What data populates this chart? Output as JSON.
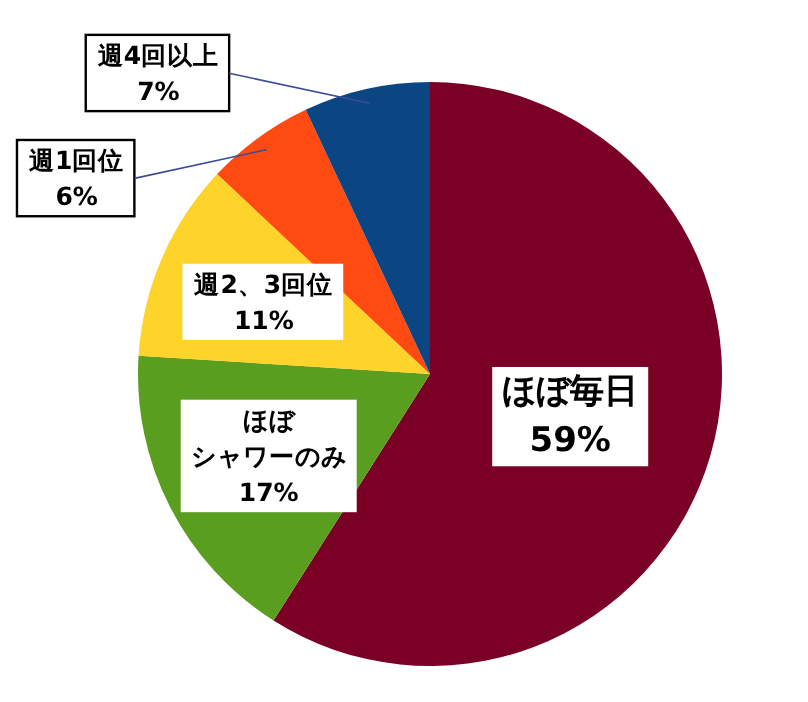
{
  "chart_data": {
    "type": "pie",
    "categories": [
      "ほぼ毎日",
      "ほぼシャワーのみ",
      "週2、3回位",
      "週1回位",
      "週4回以上"
    ],
    "values": [
      59,
      17,
      11,
      6,
      7
    ],
    "value_labels": [
      "59%",
      "17%",
      "11%",
      "6%",
      "7%"
    ],
    "colors": [
      "#7b0025",
      "#5a9e1f",
      "#ffd42a",
      "#ff4a12",
      "#0b4683"
    ]
  }
}
